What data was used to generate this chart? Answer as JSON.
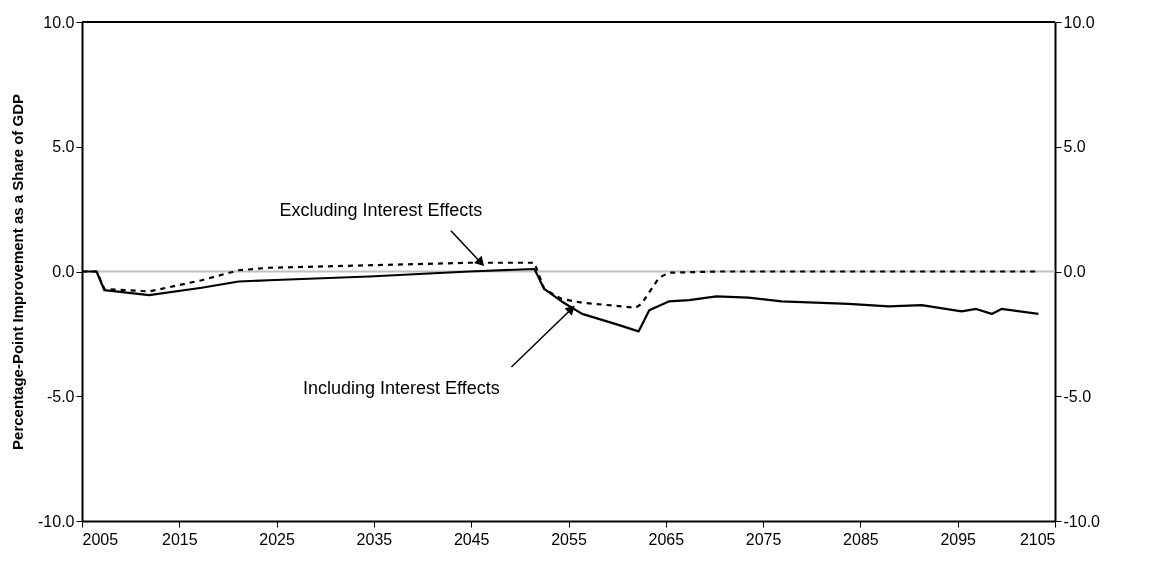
{
  "chart_data": {
    "type": "line",
    "ylabel": "Percentage-Point Improvement as a Share of GDP",
    "xlim": [
      2005,
      2105
    ],
    "xticks": [
      2005,
      2015,
      2025,
      2035,
      2045,
      2055,
      2065,
      2075,
      2085,
      2095,
      2105
    ],
    "ylim": [
      -10,
      10
    ],
    "yticks": [
      {
        "value": -10,
        "label": "-10.0"
      },
      {
        "value": -5,
        "label": "-5.0"
      },
      {
        "value": 0,
        "label": "0.0"
      },
      {
        "value": 5,
        "label": "5.0"
      },
      {
        "value": 10,
        "label": "10.0"
      }
    ],
    "y2lim": [
      -10,
      10
    ],
    "y2ticks": [
      {
        "value": -10,
        "label": "-10.0"
      },
      {
        "value": -5,
        "label": "-5.0"
      },
      {
        "value": 0,
        "label": "0.0"
      },
      {
        "value": 5,
        "label": "5.0"
      },
      {
        "value": 10,
        "label": "10.0"
      }
    ],
    "grid": false,
    "ref_lines": [
      {
        "axis": "y",
        "value": 0,
        "color": "#c0c0c0"
      }
    ],
    "series": [
      {
        "color": "#000000",
        "line_style": "dashed",
        "x": [
          2005,
          2006.5,
          2007.3,
          2011.9,
          2017.3,
          2021.1,
          2024.2,
          2034.5,
          2044.8,
          2051.5,
          2052.5,
          2054.3,
          2056.4,
          2061.9,
          2062.5,
          2064.3,
          2065.3,
          2070.2,
          2080,
          2090,
          2103
        ],
        "values": [
          0,
          0,
          -0.7,
          -0.8,
          -0.35,
          0.05,
          0.15,
          0.25,
          0.35,
          0.35,
          -0.7,
          -1.1,
          -1.25,
          -1.45,
          -1.3,
          -0.25,
          -0.05,
          0,
          0,
          0,
          0
        ]
      },
      {
        "color": "#000000",
        "line_style": "solid",
        "x": [
          2005,
          2006.5,
          2007.3,
          2011.9,
          2017.3,
          2021.1,
          2024.2,
          2034.5,
          2044.8,
          2051.5,
          2052.5,
          2054.3,
          2056.4,
          2059.8,
          2062.2,
          2063.3,
          2065.3,
          2067.4,
          2070.2,
          2073.5,
          2076.9,
          2083.8,
          2087.9,
          2091.3,
          2095.4,
          2096.9,
          2098.5,
          2099.5,
          2103.3
        ],
        "values": [
          0,
          0,
          -0.75,
          -0.95,
          -0.65,
          -0.4,
          -0.35,
          -0.2,
          0,
          0.1,
          -0.7,
          -1.2,
          -1.7,
          -2.1,
          -2.4,
          -1.55,
          -1.2,
          -1.15,
          -1.0,
          -1.05,
          -1.2,
          -1.3,
          -1.4,
          -1.35,
          -1.6,
          -1.5,
          -1.7,
          -1.5,
          -1.7
        ]
      }
    ],
    "annotations": [
      {
        "text": "Excluding Interest Effects",
        "x": 2046,
        "y": 0.35
      },
      {
        "text": "Including Interest Effects",
        "x": 2055.3,
        "y": -1.5
      }
    ]
  }
}
